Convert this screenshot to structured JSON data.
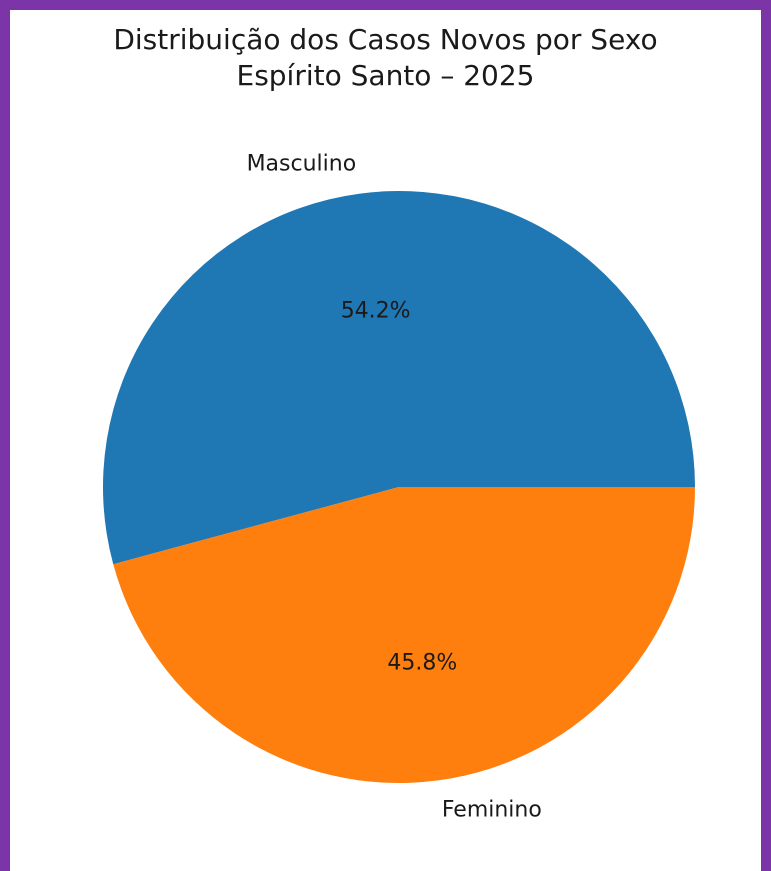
{
  "chart_data": {
    "type": "pie",
    "title": "Distribuição dos Casos Novos por Sexo",
    "subtitle": "Espírito Santo – 2025",
    "slices": [
      {
        "label": "Masculino",
        "value": 54.2,
        "pct_label": "54.2%",
        "color": "#1f77b4"
      },
      {
        "label": "Feminino",
        "value": 45.8,
        "pct_label": "45.8%",
        "color": "#ff7f0e"
      }
    ],
    "start_angle_deg": 0,
    "direction": "counterclockwise",
    "legend": "none"
  },
  "colors": {
    "border": "#7b35a6",
    "background": "#ffffff",
    "text": "#1a1a1a"
  }
}
